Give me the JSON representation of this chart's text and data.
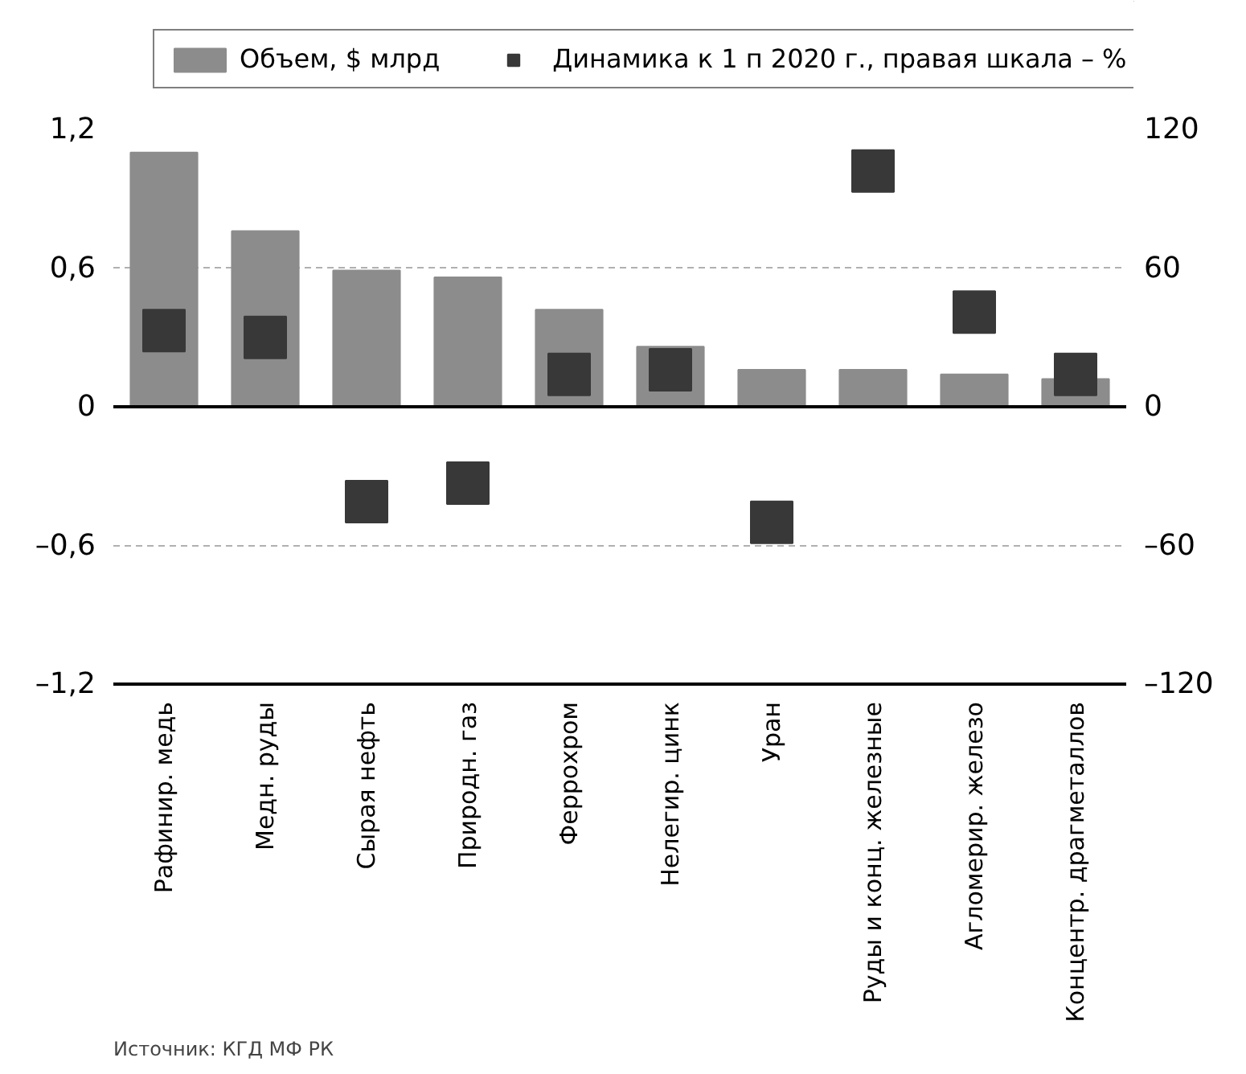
{
  "chart_data": {
    "type": "bar",
    "categories": [
      "Рафинир. медь",
      "Медн. руды",
      "Сырая нефть",
      "Природн. газ",
      "Феррохром",
      "Нелегир. цинк",
      "Уран",
      "Руды и конц. железные",
      "Агломерир. железо",
      "Концентр. драгметаллов"
    ],
    "series": [
      {
        "name": "Объем, $ млрд",
        "color": "#8c8c8c",
        "values": [
          1.1,
          0.76,
          0.59,
          0.56,
          0.42,
          0.26,
          0.16,
          0.16,
          0.14,
          0.12
        ]
      },
      {
        "name": "Динамика к 1 п 2020 г., правая шкала – %",
        "type": "scatter",
        "axis": "y2",
        "color": "#383838",
        "values": [
          33,
          30,
          -41,
          -33,
          14,
          16,
          -50,
          102,
          41,
          14
        ]
      }
    ],
    "ylim": [
      -1.2,
      1.2
    ],
    "yticks": [
      {
        "value": -1.2,
        "label": "–1,2"
      },
      {
        "value": -0.6,
        "label": "–0,6"
      },
      0,
      {
        "value": 0.6,
        "label": "0,6"
      },
      {
        "value": 1.2,
        "label": "1,2"
      }
    ],
    "y2lim": [
      -120,
      120
    ],
    "y2ticks": [
      {
        "value": -120,
        "label": "–120"
      },
      {
        "value": -60,
        "label": "–60"
      },
      0,
      60,
      120
    ],
    "ref_lines": [
      {
        "axis": "y",
        "value": 0,
        "color": "#000000",
        "line_style": "solid"
      }
    ],
    "grid": "y",
    "legend": "top",
    "marker": "square",
    "annotations": [
      "Источник: КГД МФ РК"
    ]
  }
}
